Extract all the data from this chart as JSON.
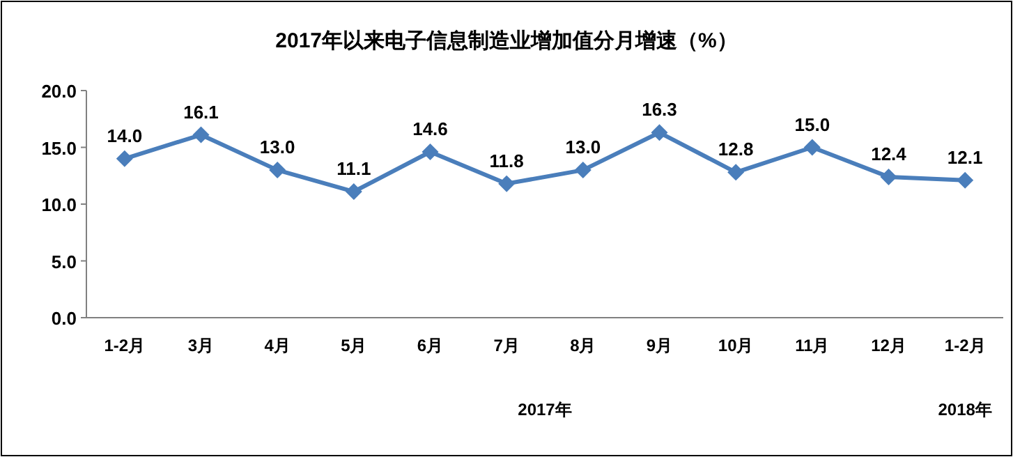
{
  "chart_data": {
    "type": "line",
    "title": "2017年以来电子信息制造业增加值分月增速（%）",
    "categories": [
      "1-2月",
      "3月",
      "4月",
      "5月",
      "6月",
      "7月",
      "8月",
      "9月",
      "10月",
      "11月",
      "12月",
      "1-2月"
    ],
    "values": [
      14.0,
      16.1,
      13.0,
      11.1,
      14.6,
      11.8,
      13.0,
      16.3,
      12.8,
      15.0,
      12.4,
      12.1
    ],
    "value_labels": [
      "14.0",
      "16.1",
      "13.0",
      "11.1",
      "14.6",
      "11.8",
      "13.0",
      "16.3",
      "12.8",
      "15.0",
      "12.4",
      "12.1"
    ],
    "color": "#4a7ebb",
    "marker": "diamond",
    "ylim": [
      0,
      20
    ],
    "yticks": [
      {
        "value": 0,
        "label": "0.0"
      },
      {
        "value": 5,
        "label": "5.0"
      },
      {
        "value": 10,
        "label": "10.0"
      },
      {
        "value": 15,
        "label": "15.0"
      },
      {
        "value": 20,
        "label": "20.0"
      }
    ],
    "annotations": [
      "2017年",
      "2018年"
    ]
  }
}
